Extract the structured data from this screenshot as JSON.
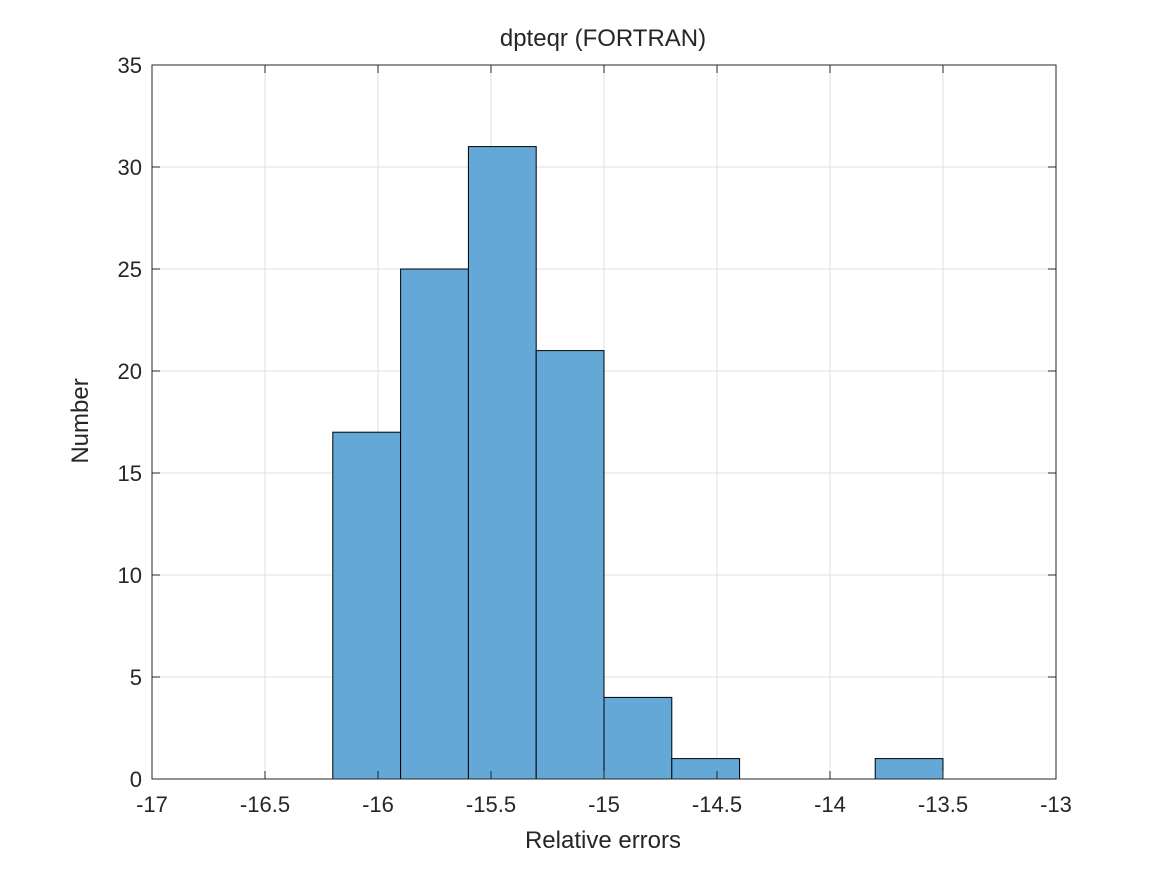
{
  "chart_data": {
    "type": "bar",
    "title": "dpteqr (FORTRAN)",
    "xlabel": "Relative errors",
    "ylabel": "Number",
    "xlim": [
      -17,
      -13
    ],
    "ylim": [
      0,
      35
    ],
    "xticks": [
      -17,
      -16.5,
      -16,
      -15.5,
      -15,
      -14.5,
      -14,
      -13.5,
      -13
    ],
    "xtick_labels": [
      "-17",
      "-16.5",
      "-16",
      "-15.5",
      "-15",
      "-14.5",
      "-14",
      "-13.5",
      "-13"
    ],
    "yticks": [
      0,
      5,
      10,
      15,
      20,
      25,
      30,
      35
    ],
    "ytick_labels": [
      "0",
      "5",
      "10",
      "15",
      "20",
      "25",
      "30",
      "35"
    ],
    "grid": true,
    "bar_color": "#64a8d7",
    "bins": [
      {
        "x_start": -16.2,
        "x_end": -15.9,
        "count": 17
      },
      {
        "x_start": -15.9,
        "x_end": -15.6,
        "count": 25
      },
      {
        "x_start": -15.6,
        "x_end": -15.3,
        "count": 31
      },
      {
        "x_start": -15.3,
        "x_end": -15.0,
        "count": 21
      },
      {
        "x_start": -15.0,
        "x_end": -14.7,
        "count": 4
      },
      {
        "x_start": -14.7,
        "x_end": -14.4,
        "count": 1
      },
      {
        "x_start": -14.4,
        "x_end": -14.1,
        "count": 0
      },
      {
        "x_start": -14.1,
        "x_end": -13.8,
        "count": 0
      },
      {
        "x_start": -13.8,
        "x_end": -13.5,
        "count": 1
      }
    ]
  }
}
